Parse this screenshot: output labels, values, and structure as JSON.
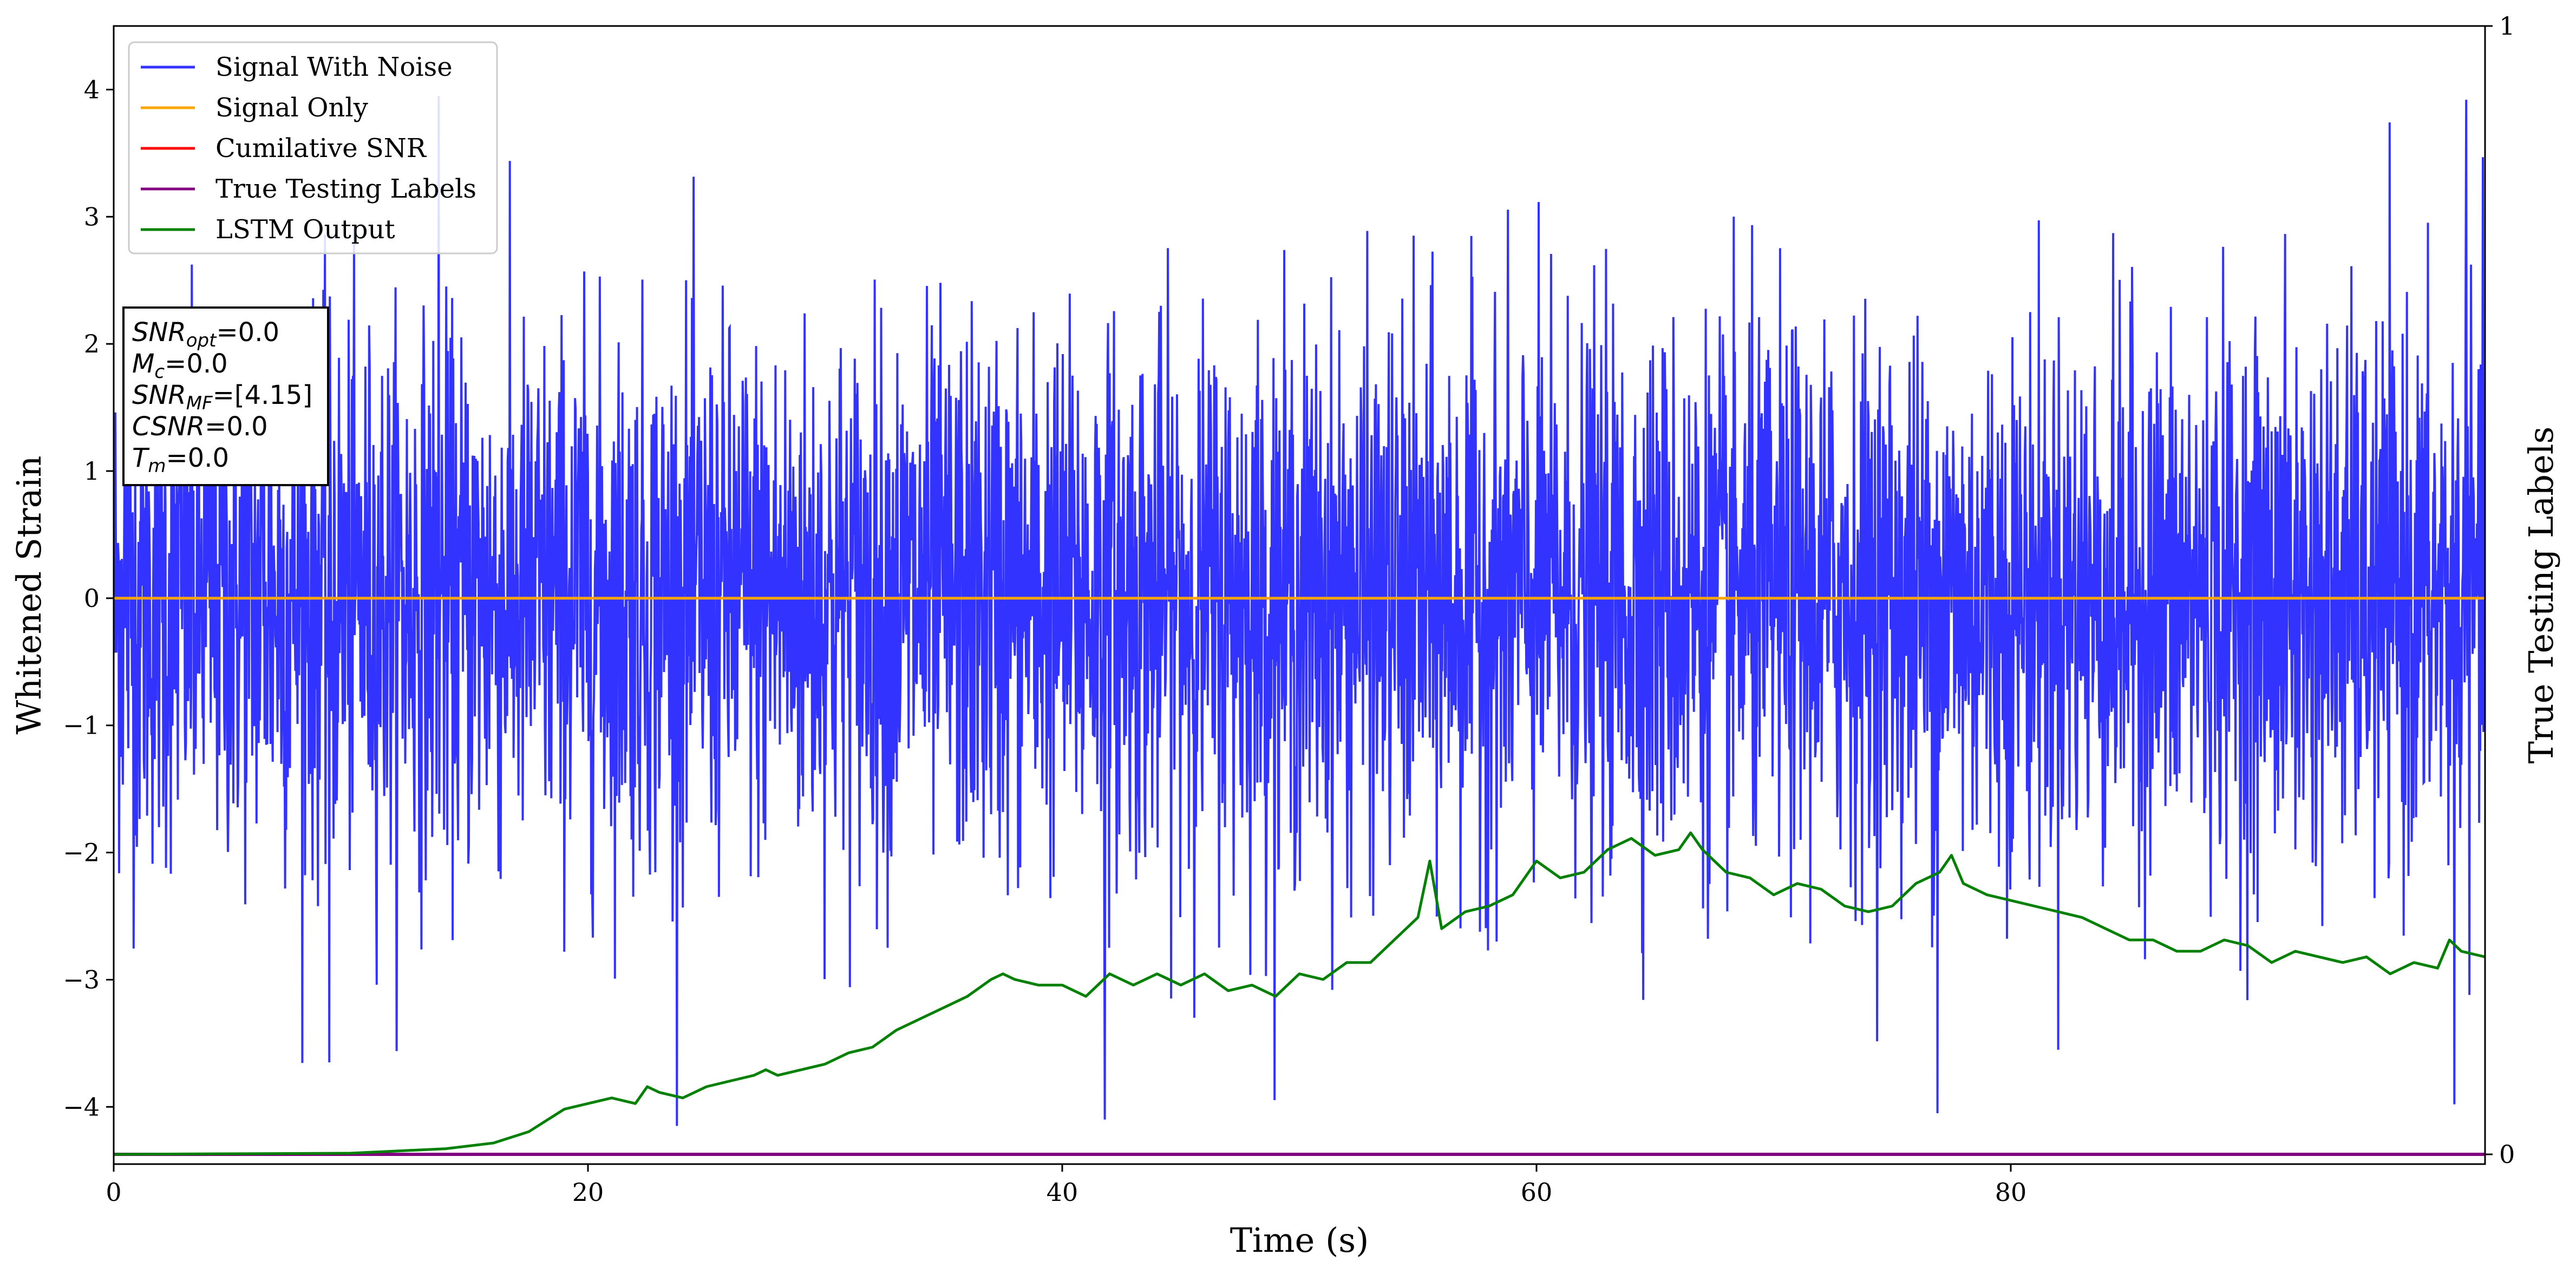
{
  "chart_data": {
    "type": "line",
    "xlabel": "Time (s)",
    "ylabel": "Whitened Strain",
    "y2label": "True Testing Labels",
    "xlim": [
      0,
      100
    ],
    "ylim": [
      -4.45,
      4.5
    ],
    "y2lim": [
      0,
      1
    ],
    "x_ticks": [
      0,
      20,
      40,
      60,
      80
    ],
    "y_ticks": [
      -4,
      -3,
      -2,
      -1,
      0,
      1,
      2,
      3,
      4
    ],
    "y2_ticks": [
      0,
      1
    ],
    "grid": false,
    "legend_position": "top-left",
    "series": [
      {
        "name": "Signal With Noise",
        "color": "#3333ff",
        "axis": "left",
        "description_values": "dense gaussian noise band, mostly between -2.5 and 2.5 with spikes to about 3.95 and -4.1",
        "noise_std": 1.0,
        "peaks": [
          {
            "x": 13.7,
            "y": 3.95
          },
          {
            "x": 99.2,
            "y": 3.92
          },
          {
            "x": 41.8,
            "y": -4.1
          },
          {
            "x": 76.9,
            "y": -4.05
          },
          {
            "x": 98.7,
            "y": -3.98
          },
          {
            "x": 9.1,
            "y": -3.65
          }
        ]
      },
      {
        "name": "Signal Only",
        "color": "#ffa500",
        "axis": "left",
        "x": [
          0,
          100
        ],
        "y": [
          0,
          0
        ]
      },
      {
        "name": "Cumilative SNR",
        "color": "#ff0000",
        "axis": "right",
        "x": [],
        "y": []
      },
      {
        "name": "True Testing Labels",
        "color": "#800080",
        "axis": "right",
        "x": [
          0,
          100
        ],
        "y": [
          0,
          0
        ]
      },
      {
        "name": "LSTM Output",
        "color": "#008000",
        "axis": "right",
        "x": [
          0,
          10,
          12,
          14,
          16,
          17.5,
          19,
          20,
          21,
          22,
          22.5,
          23,
          24,
          25,
          26,
          27,
          27.5,
          28,
          29,
          30,
          31,
          32,
          33,
          34,
          35,
          36,
          37,
          37.5,
          38,
          39,
          40,
          41,
          42,
          43,
          44,
          45,
          46,
          47,
          48,
          49,
          50,
          51,
          52,
          53,
          54,
          55,
          55.5,
          56,
          57,
          58,
          59,
          60,
          61,
          62,
          63,
          64,
          65,
          66,
          66.5,
          67,
          68,
          69,
          70,
          71,
          72,
          73,
          74,
          75,
          76,
          77,
          77.5,
          78,
          79,
          80,
          81,
          82,
          83,
          84,
          85,
          86,
          87,
          88,
          89,
          90,
          91,
          92,
          93,
          94,
          95,
          96,
          97,
          98,
          98.5,
          99,
          100
        ],
        "y": [
          0,
          0.001,
          0.003,
          0.005,
          0.01,
          0.02,
          0.04,
          0.045,
          0.05,
          0.045,
          0.06,
          0.055,
          0.05,
          0.06,
          0.065,
          0.07,
          0.075,
          0.07,
          0.075,
          0.08,
          0.09,
          0.095,
          0.11,
          0.12,
          0.13,
          0.14,
          0.155,
          0.16,
          0.155,
          0.15,
          0.15,
          0.14,
          0.16,
          0.15,
          0.16,
          0.15,
          0.16,
          0.145,
          0.15,
          0.14,
          0.16,
          0.155,
          0.17,
          0.17,
          0.19,
          0.21,
          0.26,
          0.2,
          0.215,
          0.22,
          0.23,
          0.26,
          0.245,
          0.25,
          0.27,
          0.28,
          0.265,
          0.27,
          0.285,
          0.27,
          0.25,
          0.245,
          0.23,
          0.24,
          0.235,
          0.22,
          0.215,
          0.22,
          0.24,
          0.25,
          0.265,
          0.24,
          0.23,
          0.225,
          0.22,
          0.215,
          0.21,
          0.2,
          0.19,
          0.19,
          0.18,
          0.18,
          0.19,
          0.185,
          0.17,
          0.18,
          0.175,
          0.17,
          0.175,
          0.16,
          0.17,
          0.165,
          0.19,
          0.18,
          0.175
        ]
      }
    ],
    "info_box": {
      "lines": [
        {
          "sym": "SNR",
          "sub": "opt",
          "val": "=0.0"
        },
        {
          "sym": "M",
          "sub": "c",
          "val": "=0.0"
        },
        {
          "sym": "SNR",
          "sub": "MF",
          "val": "=[4.15]"
        },
        {
          "sym": "CSNR",
          "sub": "",
          "val": "=0.0"
        },
        {
          "sym": "T",
          "sub": "m",
          "val": "=0.0"
        }
      ]
    }
  }
}
